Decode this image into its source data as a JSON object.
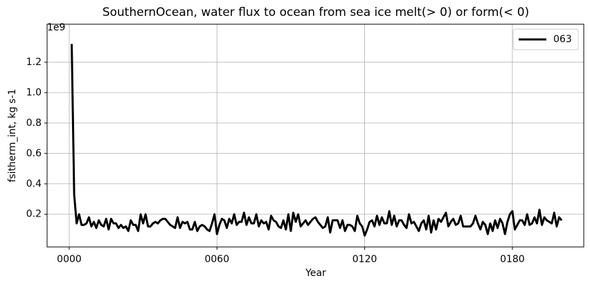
{
  "chart_data": {
    "type": "line",
    "title": "SouthernOcean, water flux to ocean from sea ice melt(> 0) or form(< 0)",
    "xlabel": "Year",
    "ylabel": "fsitherm_int, kg s-1",
    "y_offset_label": "1e9",
    "x": [
      1,
      2,
      3,
      4,
      5,
      6,
      7,
      8,
      9,
      10,
      11,
      12,
      13,
      14,
      15,
      16,
      17,
      18,
      19,
      20,
      21,
      22,
      23,
      24,
      25,
      26,
      27,
      28,
      29,
      30,
      31,
      32,
      33,
      34,
      35,
      36,
      37,
      38,
      39,
      40,
      41,
      42,
      43,
      44,
      45,
      46,
      47,
      48,
      49,
      50,
      51,
      52,
      53,
      54,
      55,
      56,
      57,
      58,
      59,
      60,
      61,
      62,
      63,
      64,
      65,
      66,
      67,
      68,
      69,
      70,
      71,
      72,
      73,
      74,
      75,
      76,
      77,
      78,
      79,
      80,
      81,
      82,
      83,
      84,
      85,
      86,
      87,
      88,
      89,
      90,
      91,
      92,
      93,
      94,
      95,
      96,
      97,
      98,
      99,
      100,
      101,
      102,
      103,
      104,
      105,
      106,
      107,
      108,
      109,
      110,
      111,
      112,
      113,
      114,
      115,
      116,
      117,
      118,
      119,
      120,
      121,
      122,
      123,
      124,
      125,
      126,
      127,
      128,
      129,
      130,
      131,
      132,
      133,
      134,
      135,
      136,
      137,
      138,
      139,
      140,
      141,
      142,
      143,
      144,
      145,
      146,
      147,
      148,
      149,
      150,
      151,
      152,
      153,
      154,
      155,
      156,
      157,
      158,
      159,
      160,
      161,
      162,
      163,
      164,
      165,
      166,
      167,
      168,
      169,
      170,
      171,
      172,
      173,
      174,
      175,
      176,
      177,
      178,
      179,
      180,
      181,
      182,
      183,
      184,
      185,
      186,
      187,
      188,
      189,
      190,
      191,
      192,
      193,
      194,
      195,
      196,
      197,
      198,
      199,
      200
    ],
    "series": [
      {
        "name": "063",
        "color": "#000000",
        "values": [
          1.32,
          0.33,
          0.14,
          0.2,
          0.13,
          0.13,
          0.14,
          0.18,
          0.12,
          0.15,
          0.11,
          0.16,
          0.13,
          0.12,
          0.17,
          0.1,
          0.17,
          0.14,
          0.14,
          0.11,
          0.13,
          0.11,
          0.12,
          0.09,
          0.16,
          0.13,
          0.13,
          0.09,
          0.2,
          0.14,
          0.2,
          0.12,
          0.12,
          0.14,
          0.15,
          0.14,
          0.16,
          0.17,
          0.17,
          0.15,
          0.13,
          0.12,
          0.11,
          0.18,
          0.11,
          0.15,
          0.14,
          0.15,
          0.1,
          0.1,
          0.15,
          0.09,
          0.12,
          0.13,
          0.12,
          0.1,
          0.09,
          0.14,
          0.2,
          0.07,
          0.13,
          0.17,
          0.16,
          0.11,
          0.17,
          0.14,
          0.2,
          0.13,
          0.15,
          0.15,
          0.21,
          0.13,
          0.18,
          0.14,
          0.14,
          0.2,
          0.12,
          0.16,
          0.14,
          0.15,
          0.1,
          0.19,
          0.16,
          0.15,
          0.12,
          0.11,
          0.16,
          0.1,
          0.2,
          0.09,
          0.21,
          0.15,
          0.2,
          0.12,
          0.14,
          0.16,
          0.13,
          0.15,
          0.17,
          0.18,
          0.15,
          0.13,
          0.11,
          0.12,
          0.18,
          0.08,
          0.16,
          0.16,
          0.16,
          0.11,
          0.16,
          0.09,
          0.13,
          0.13,
          0.12,
          0.09,
          0.19,
          0.14,
          0.12,
          0.06,
          0.1,
          0.15,
          0.16,
          0.12,
          0.19,
          0.13,
          0.18,
          0.14,
          0.14,
          0.22,
          0.13,
          0.19,
          0.12,
          0.16,
          0.16,
          0.13,
          0.11,
          0.2,
          0.14,
          0.15,
          0.12,
          0.09,
          0.14,
          0.16,
          0.1,
          0.19,
          0.08,
          0.16,
          0.1,
          0.17,
          0.15,
          0.18,
          0.21,
          0.12,
          0.15,
          0.17,
          0.13,
          0.14,
          0.19,
          0.12,
          0.12,
          0.12,
          0.12,
          0.14,
          0.19,
          0.14,
          0.1,
          0.15,
          0.13,
          0.07,
          0.14,
          0.09,
          0.16,
          0.11,
          0.17,
          0.14,
          0.07,
          0.15,
          0.2,
          0.22,
          0.1,
          0.13,
          0.16,
          0.16,
          0.13,
          0.2,
          0.13,
          0.14,
          0.18,
          0.14,
          0.23,
          0.13,
          0.18,
          0.16,
          0.15,
          0.14,
          0.21,
          0.12,
          0.18,
          0.16
        ]
      }
    ],
    "xlim": [
      -9,
      209
    ],
    "xticks": [
      {
        "value": 0,
        "label": "0000"
      },
      {
        "value": 60,
        "label": "0060"
      },
      {
        "value": 120,
        "label": "0120"
      },
      {
        "value": 180,
        "label": "0180"
      }
    ],
    "ylim": [
      -0.015,
      1.45
    ],
    "yticks": [
      0.2,
      0.4,
      0.6,
      0.8,
      {
        "value": 1,
        "label": "1.0"
      },
      1.2
    ],
    "grid": true,
    "legend": "upper right"
  }
}
